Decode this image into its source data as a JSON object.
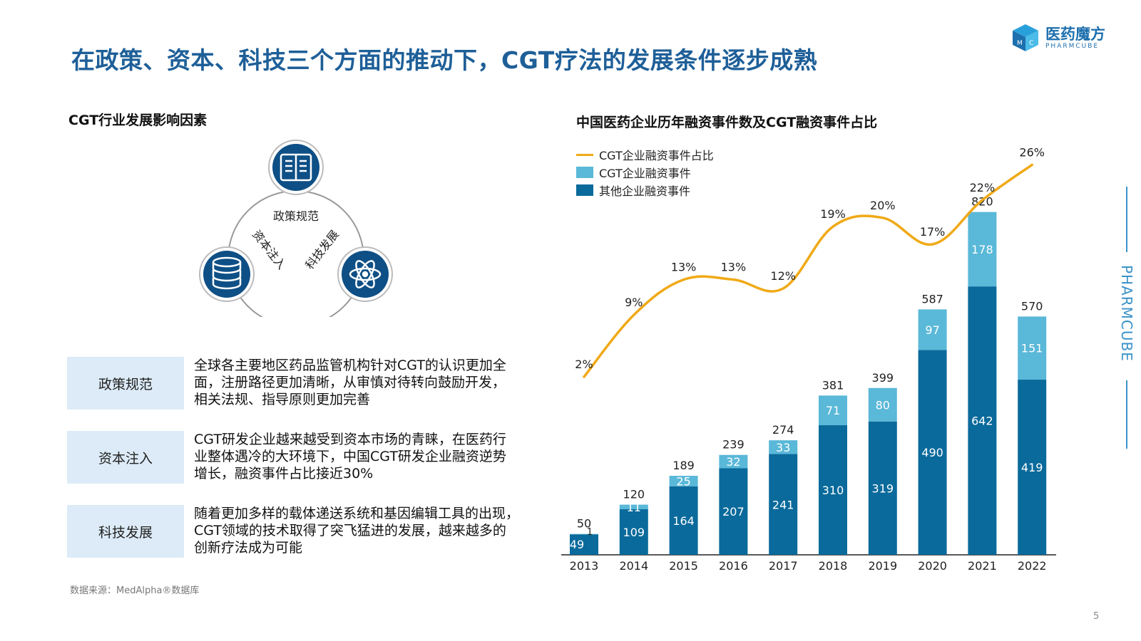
{
  "page": {
    "title": "在政策、资本、科技三个方面的推动下，CGT疗法的发展条件逐步成熟",
    "page_number": "5",
    "source": "数据来源：MedAlpha®数据库"
  },
  "logo": {
    "name_cn": "医药魔方",
    "name_en": "PHARMCUBE"
  },
  "side_brand": {
    "text": "PHARMCUBE"
  },
  "left": {
    "heading": "CGT行业发展影响因素",
    "diagram": {
      "nodes": [
        {
          "label": "政策规范",
          "icon": "policy-document-icon"
        },
        {
          "label": "资本注入",
          "icon": "coin-stack-icon"
        },
        {
          "label": "科技发展",
          "icon": "atom-icon"
        }
      ]
    },
    "factors": [
      {
        "label": "政策规范",
        "lines": [
          "全球各主要地区药品监管机构针对CGT的认识更加全",
          "面，注册路径更加清晰，从审慎对待转向鼓励开发，",
          "相关法规、指导原则更加完善"
        ]
      },
      {
        "label": "资本注入",
        "lines": [
          "CGT研发企业越来越受到资本市场的青睐，在医药行",
          "业整体遇冷的大环境下，中国CGT研发企业融资逆势",
          "增长，融资事件占比接近30%"
        ]
      },
      {
        "label": "科技发展",
        "lines": [
          "随着更加多样的载体递送系统和基因编辑工具的出现，",
          "CGT领域的技术取得了突飞猛进的发展，越来越多的",
          "创新疗法成为可能"
        ]
      }
    ]
  },
  "colors": {
    "title_blue": "#1e5f98",
    "dark_bar": "#0a6a9b",
    "light_bar": "#5ab8d8",
    "line": "#f0a916",
    "factor_bg": "#dcebf7"
  },
  "chart_data": {
    "type": "bar",
    "title": "中国医药企业历年融资事件数及CGT融资事件占比",
    "stacked": true,
    "categories": [
      "2013",
      "2014",
      "2015",
      "2016",
      "2017",
      "2018",
      "2019",
      "2020",
      "2021",
      "2022"
    ],
    "series": [
      {
        "name": "其他企业融资事件",
        "values": [
          49,
          109,
          164,
          207,
          241,
          310,
          319,
          490,
          642,
          419
        ]
      },
      {
        "name": "CGT企业融资事件",
        "values": [
          1,
          11,
          25,
          32,
          33,
          71,
          80,
          97,
          178,
          151
        ]
      }
    ],
    "totals": [
      50,
      120,
      189,
      239,
      274,
      381,
      399,
      587,
      820,
      570
    ],
    "line_series": {
      "name": "CGT企业融资事件占比",
      "type": "line",
      "values": [
        2,
        9,
        13,
        13,
        12,
        19,
        20,
        17,
        22,
        26
      ],
      "labels": [
        "2%",
        "9%",
        "13%",
        "13%",
        "12%",
        "19%",
        "20%",
        "17%",
        "22%",
        "26%"
      ]
    },
    "legend": [
      "CGT企业融资事件占比",
      "CGT企业融资事件",
      "其他企业融资事件"
    ],
    "legend_position": "top-left",
    "grid": false
  }
}
